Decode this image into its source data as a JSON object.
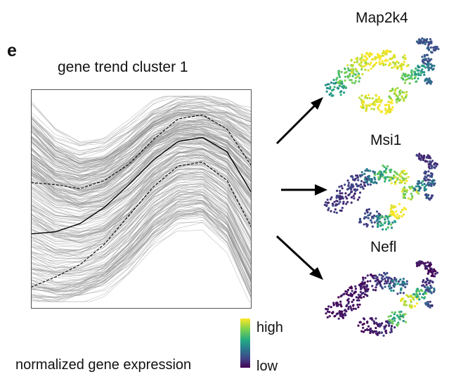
{
  "panel": {
    "letter": "e",
    "trend_title": "gene trend cluster 1"
  },
  "genes": [
    {
      "label": "Map2k4",
      "style": "broad"
    },
    {
      "label": "Msi1",
      "style": "middle"
    },
    {
      "label": "Nefl",
      "style": "late"
    }
  ],
  "legend": {
    "high": "high",
    "low": "low",
    "caption": "normalized gene expression",
    "colors": [
      "#440154",
      "#414487",
      "#2a788e",
      "#22a884",
      "#7ad151",
      "#fde725"
    ]
  },
  "chart_data": {
    "type": "line",
    "title": "gene trend cluster 1",
    "xlabel": "",
    "ylabel": "",
    "background_traces": "many gray individual gene trends",
    "series": [
      {
        "style": "solid",
        "values": [
          0.33,
          0.34,
          0.38,
          0.46,
          0.57,
          0.69,
          0.78,
          0.8,
          0.73,
          0.53
        ]
      },
      {
        "style": "dashed",
        "values": [
          0.58,
          0.57,
          0.55,
          0.59,
          0.67,
          0.79,
          0.89,
          0.91,
          0.84,
          0.66
        ]
      },
      {
        "style": "dashed",
        "values": [
          0.07,
          0.12,
          0.18,
          0.28,
          0.42,
          0.56,
          0.66,
          0.68,
          0.59,
          0.36
        ]
      }
    ],
    "envelope": {
      "upper": [
        0.93,
        0.8,
        0.74,
        0.76,
        0.84,
        0.94,
        0.99,
        0.99,
        0.97,
        0.92
      ],
      "lower": [
        0.02,
        0.0,
        0.02,
        0.07,
        0.18,
        0.32,
        0.41,
        0.42,
        0.3,
        0.02
      ]
    },
    "ylim": [
      0,
      1
    ],
    "grid": false,
    "legend": "none"
  }
}
